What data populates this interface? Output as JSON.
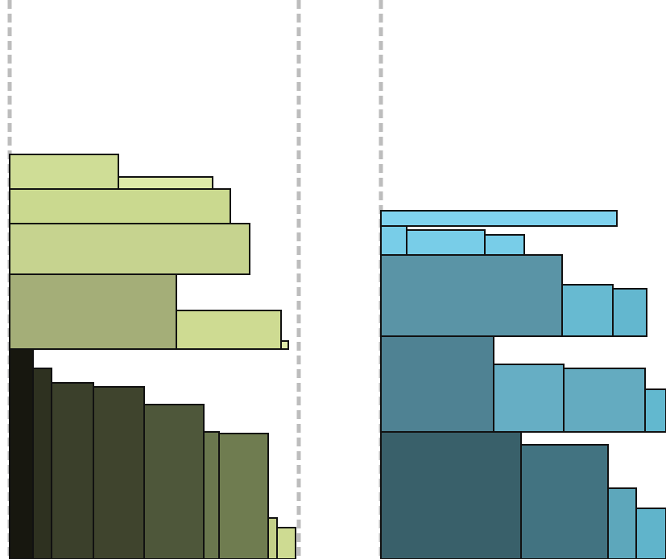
{
  "diagram": {
    "type": "treemap-like stacked rectangles",
    "panels": [
      {
        "name": "green-panel",
        "cells": [
          {
            "name": "green-top-1",
            "color": "#cfdd96"
          },
          {
            "name": "green-top-2",
            "color": "#dfeaa9"
          },
          {
            "name": "green-top-3",
            "color": "#cad98f"
          },
          {
            "name": "green-top-4",
            "color": "#c6d38f"
          },
          {
            "name": "green-mid-1",
            "color": "#a4ae78"
          },
          {
            "name": "green-mid-2",
            "color": "#cedb92"
          },
          {
            "name": "green-mid-3",
            "color": "#dfeaa9"
          },
          {
            "name": "green-bottom-1",
            "color": "#17170f"
          },
          {
            "name": "green-bottom-2",
            "color": "#2e3120"
          },
          {
            "name": "green-bottom-3",
            "color": "#3b402b"
          },
          {
            "name": "green-bottom-4",
            "color": "#3f442d"
          },
          {
            "name": "green-bottom-5",
            "color": "#4e573a"
          },
          {
            "name": "green-bottom-6",
            "color": "#6a774e"
          },
          {
            "name": "green-bottom-7",
            "color": "#6f7c50"
          },
          {
            "name": "green-bottom-8",
            "color": "#c3cf88"
          },
          {
            "name": "green-bottom-9",
            "color": "#cedb92"
          }
        ]
      },
      {
        "name": "blue-panel",
        "cells": [
          {
            "name": "blue-top-1",
            "color": "#7fd2ee"
          },
          {
            "name": "blue-row2-1",
            "color": "#78cde8"
          },
          {
            "name": "blue-row2-2",
            "color": "#78cde8"
          },
          {
            "name": "blue-row2-3",
            "color": "#78cde8"
          },
          {
            "name": "blue-mid-1",
            "color": "#5a94a6"
          },
          {
            "name": "blue-mid-2",
            "color": "#67bad1"
          },
          {
            "name": "blue-mid-3",
            "color": "#63b7cf"
          },
          {
            "name": "blue-mid-4",
            "color": "#4f8293"
          },
          {
            "name": "blue-mid-5",
            "color": "#66aec4"
          },
          {
            "name": "blue-mid-6",
            "color": "#64abc0"
          },
          {
            "name": "blue-mid-7",
            "color": "#62b8cf"
          },
          {
            "name": "blue-bottom-1",
            "color": "#39606a"
          },
          {
            "name": "blue-bottom-2",
            "color": "#427381"
          },
          {
            "name": "blue-bottom-3",
            "color": "#5da7bb"
          },
          {
            "name": "blue-bottom-4",
            "color": "#60b4cb"
          }
        ]
      }
    ]
  }
}
